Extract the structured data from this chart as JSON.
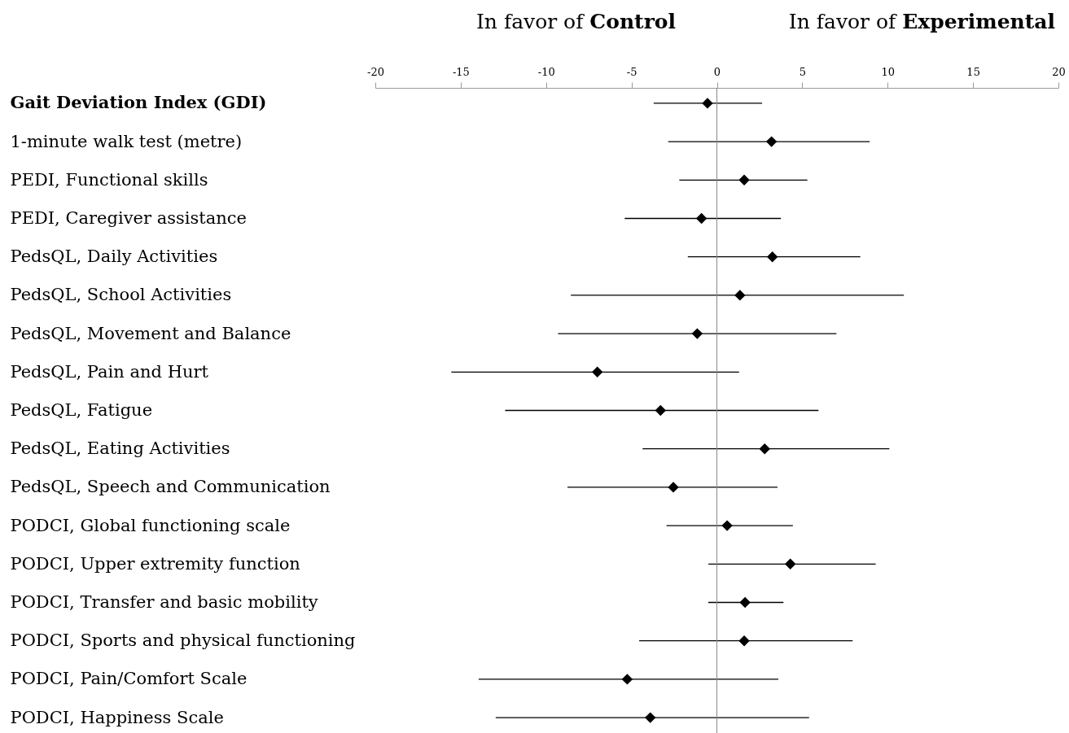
{
  "chart_data": {
    "type": "scatter",
    "orientation": "horizontal",
    "marker": "diamond",
    "annotations": [
      "In favor of Control",
      "In favor of Experimental"
    ],
    "categories": [
      "Gait Deviation Index (GDI)",
      "1-minute walk test (metre)",
      "PEDI, Functional skills",
      "PEDI, Caregiver assistance",
      "PedsQL, Daily Activities",
      "PedsQL, School Activities",
      "PedsQL, Movement and Balance",
      "PedsQL, Pain and Hurt",
      "PedsQL, Fatigue",
      "PedsQL, Eating Activities",
      "PedsQL, Speech and Communication",
      "PODCI, Global functioning scale",
      "PODCI, Upper extremity function",
      "PODCI, Transfer and basic mobility",
      "PODCI, Sports and physical functioning",
      "PODCI, Pain/Comfort Scale",
      "PODCI, Happiness Scale"
    ],
    "series": [
      {
        "color": "#000000",
        "values": [
          -0.55,
          3.2,
          1.6,
          -0.9,
          3.25,
          1.35,
          -1.15,
          -7.0,
          -3.3,
          2.8,
          -2.55,
          0.6,
          4.3,
          1.65,
          1.6,
          -5.25,
          -3.9
        ],
        "errors": [
          [
            -3.7,
            2.65
          ],
          [
            -2.85,
            8.95
          ],
          [
            -2.2,
            5.3
          ],
          [
            -5.4,
            3.75
          ],
          [
            -1.7,
            8.4
          ],
          [
            -8.55,
            10.95
          ],
          [
            -9.3,
            7.0
          ],
          [
            -15.55,
            1.3
          ],
          [
            -12.4,
            5.95
          ],
          [
            -4.35,
            10.1
          ],
          [
            -8.75,
            3.55
          ],
          [
            -2.95,
            4.45
          ],
          [
            -0.5,
            9.3
          ],
          [
            -0.5,
            3.9
          ],
          [
            -4.55,
            7.95
          ],
          [
            -13.95,
            3.6
          ],
          [
            -12.95,
            5.4
          ]
        ]
      }
    ],
    "xlim": [
      -20,
      20
    ],
    "xticks": [
      -20,
      -15,
      -10,
      -5,
      0,
      5,
      10,
      15,
      20
    ],
    "ref_lines": [
      {
        "axis": "x",
        "value": 0,
        "color": "#888888"
      }
    ]
  }
}
